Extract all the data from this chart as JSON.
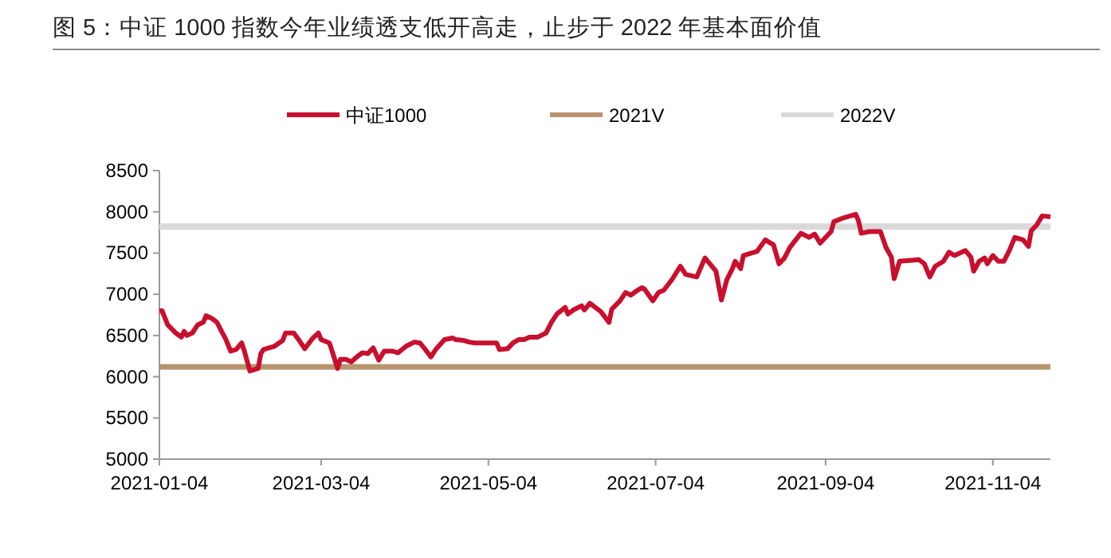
{
  "chart_data": {
    "type": "line",
    "title": "图 5：中证 1000 指数今年业绩透支低开高走，止步于 2022 年基本面价值",
    "xlim": [
      "2021-01-04",
      "2021-11-25"
    ],
    "xticks": [
      "2021-01-04",
      "2021-03-04",
      "2021-05-04",
      "2021-07-04",
      "2021-09-04",
      "2021-11-04"
    ],
    "ylim": [
      5000,
      8500
    ],
    "yticks": [
      5000,
      5500,
      6000,
      6500,
      7000,
      7500,
      8000,
      8500
    ],
    "legend": "top",
    "series": [
      {
        "name": "中证1000",
        "color": "#c8102e",
        "x": [
          "2021-01-04",
          "2021-01-05",
          "2021-01-07",
          "2021-01-10",
          "2021-01-12",
          "2021-01-13",
          "2021-01-14",
          "2021-01-16",
          "2021-01-18",
          "2021-01-20",
          "2021-01-21",
          "2021-01-23",
          "2021-01-25",
          "2021-01-27",
          "2021-01-28",
          "2021-01-30",
          "2021-02-01",
          "2021-02-03",
          "2021-02-04",
          "2021-02-06",
          "2021-02-07",
          "2021-02-09",
          "2021-02-10",
          "2021-02-11",
          "2021-02-15",
          "2021-02-18",
          "2021-02-19",
          "2021-02-22",
          "2021-02-24",
          "2021-02-26",
          "2021-03-01",
          "2021-03-03",
          "2021-03-04",
          "2021-03-07",
          "2021-03-08",
          "2021-03-10",
          "2021-03-11",
          "2021-03-13",
          "2021-03-15",
          "2021-03-17",
          "2021-03-19",
          "2021-03-21",
          "2021-03-23",
          "2021-03-25",
          "2021-03-27",
          "2021-03-30",
          "2021-04-01",
          "2021-04-04",
          "2021-04-07",
          "2021-04-09",
          "2021-04-11",
          "2021-04-13",
          "2021-04-15",
          "2021-04-18",
          "2021-04-21",
          "2021-04-22",
          "2021-04-25",
          "2021-04-27",
          "2021-04-29",
          "2021-05-04",
          "2021-05-07",
          "2021-05-08",
          "2021-05-11",
          "2021-05-13",
          "2021-05-15",
          "2021-05-17",
          "2021-05-19",
          "2021-05-22",
          "2021-05-25",
          "2021-05-27",
          "2021-05-29",
          "2021-06-01",
          "2021-06-02",
          "2021-06-04",
          "2021-06-07",
          "2021-06-08",
          "2021-06-10",
          "2021-06-12",
          "2021-06-14",
          "2021-06-17",
          "2021-06-18",
          "2021-06-21",
          "2021-06-23",
          "2021-06-25",
          "2021-06-27",
          "2021-06-29",
          "2021-06-30",
          "2021-07-03",
          "2021-07-05",
          "2021-07-07",
          "2021-07-10",
          "2021-07-13",
          "2021-07-15",
          "2021-07-19",
          "2021-07-22",
          "2021-07-24",
          "2021-07-26",
          "2021-07-28",
          "2021-07-30",
          "2021-08-01",
          "2021-08-02",
          "2021-08-04",
          "2021-08-05",
          "2021-08-08",
          "2021-08-10",
          "2021-08-13",
          "2021-08-16",
          "2021-08-18",
          "2021-08-20",
          "2021-08-22",
          "2021-08-26",
          "2021-08-29",
          "2021-08-31",
          "2021-09-02",
          "2021-09-04",
          "2021-09-06",
          "2021-09-07",
          "2021-09-10",
          "2021-09-13",
          "2021-09-15",
          "2021-09-16",
          "2021-09-17",
          "2021-09-20",
          "2021-09-24",
          "2021-09-26",
          "2021-09-28",
          "2021-09-29",
          "2021-10-01",
          "2021-10-08",
          "2021-10-10",
          "2021-10-12",
          "2021-10-14",
          "2021-10-17",
          "2021-10-19",
          "2021-10-21",
          "2021-10-25",
          "2021-10-27",
          "2021-10-28",
          "2021-10-30",
          "2021-11-01",
          "2021-11-02",
          "2021-11-04",
          "2021-11-06",
          "2021-11-08",
          "2021-11-10",
          "2021-11-12",
          "2021-11-15",
          "2021-11-17",
          "2021-11-18",
          "2021-11-20",
          "2021-11-22",
          "2021-11-25"
        ],
        "values": [
          6800,
          6800,
          6630,
          6530,
          6480,
          6550,
          6500,
          6530,
          6630,
          6660,
          6740,
          6710,
          6660,
          6530,
          6470,
          6310,
          6330,
          6410,
          6310,
          6070,
          6080,
          6100,
          6280,
          6330,
          6370,
          6440,
          6530,
          6530,
          6440,
          6340,
          6470,
          6530,
          6450,
          6410,
          6310,
          6100,
          6210,
          6210,
          6180,
          6240,
          6290,
          6280,
          6350,
          6200,
          6310,
          6310,
          6290,
          6370,
          6420,
          6410,
          6330,
          6240,
          6340,
          6450,
          6470,
          6450,
          6440,
          6420,
          6410,
          6410,
          6410,
          6330,
          6340,
          6410,
          6450,
          6450,
          6480,
          6480,
          6530,
          6660,
          6760,
          6840,
          6760,
          6810,
          6860,
          6810,
          6890,
          6840,
          6790,
          6660,
          6820,
          6920,
          7020,
          6990,
          7040,
          7080,
          7060,
          6920,
          7020,
          7050,
          7180,
          7340,
          7240,
          7210,
          7440,
          7360,
          7280,
          6930,
          7180,
          7310,
          7400,
          7310,
          7470,
          7500,
          7520,
          7660,
          7600,
          7370,
          7440,
          7570,
          7740,
          7690,
          7730,
          7620,
          7690,
          7760,
          7880,
          7920,
          7950,
          7970,
          7890,
          7740,
          7760,
          7760,
          7570,
          7450,
          7190,
          7400,
          7420,
          7370,
          7210,
          7340,
          7400,
          7510,
          7470,
          7530,
          7450,
          7280,
          7400,
          7440,
          7370,
          7470,
          7400,
          7400,
          7530,
          7690,
          7660,
          7580,
          7770,
          7840,
          7950,
          7940
        ]
      },
      {
        "name": "2021V",
        "color": "#b8946e",
        "x": [
          "2021-01-04",
          "2021-11-25"
        ],
        "values": [
          6120,
          6120
        ]
      },
      {
        "name": "2022V",
        "color": "#d9d9d9",
        "x": [
          "2021-01-04",
          "2021-11-25"
        ],
        "values": [
          7820,
          7820
        ]
      }
    ]
  }
}
